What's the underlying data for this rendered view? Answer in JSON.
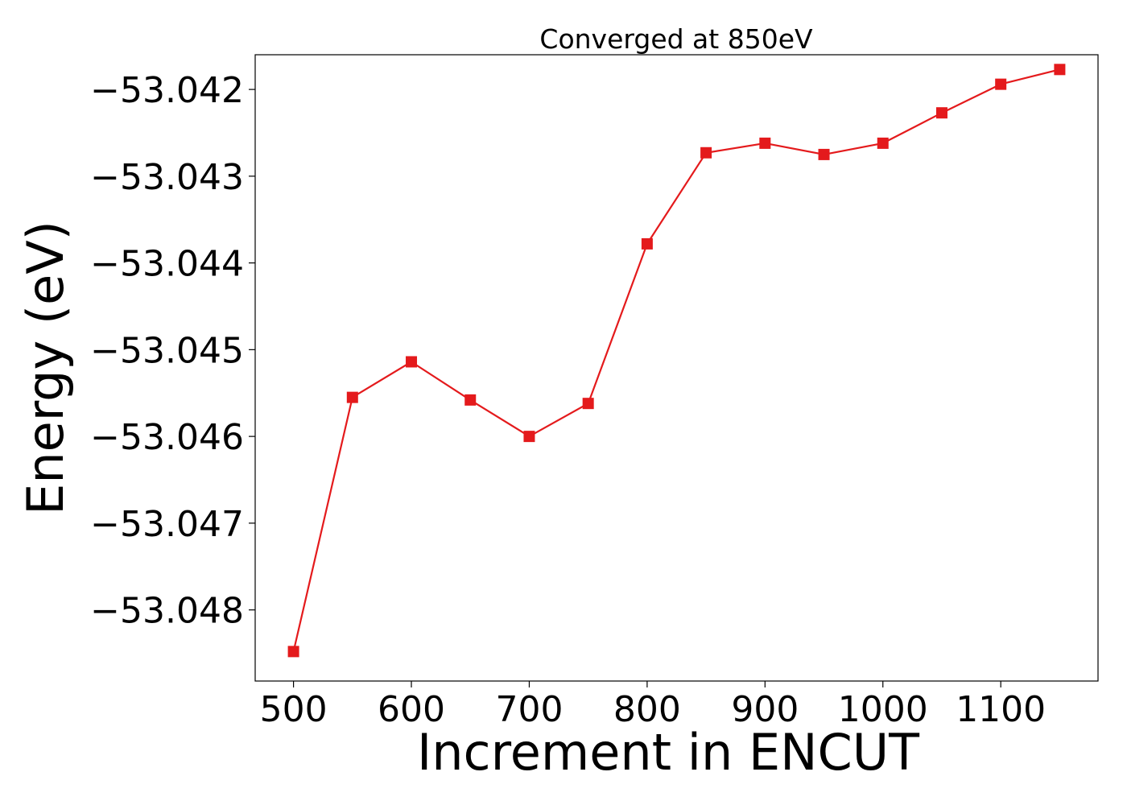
{
  "chart_data": {
    "type": "line",
    "title": "Converged at 850eV",
    "xlabel": "Increment in ENCUT",
    "ylabel": "Energy (eV)",
    "x": [
      500,
      550,
      600,
      650,
      700,
      750,
      800,
      850,
      900,
      950,
      1000,
      1050,
      1100,
      1150
    ],
    "series": [
      {
        "values": [
          -53.04848,
          -53.04555,
          -53.04514,
          -53.04558,
          -53.046,
          -53.04562,
          -53.04378,
          -53.04273,
          -53.04262,
          -53.04275,
          -53.04262,
          -53.04227,
          -53.04194,
          -53.04177
        ],
        "color": "#e41a1c",
        "marker": "square"
      }
    ],
    "xlim": [
      467.5,
      1182.5
    ],
    "ylim": [
      -53.04882,
      -53.0416
    ],
    "xticks": [
      500,
      600,
      700,
      800,
      900,
      1000,
      1100
    ],
    "xtick_labels": [
      "500",
      "600",
      "700",
      "800",
      "900",
      "1000",
      "1100"
    ],
    "yticks": [
      -53.048,
      -53.047,
      -53.046,
      -53.045,
      -53.044,
      -53.043,
      -53.042
    ],
    "ytick_labels": [
      "−53.048",
      "−53.047",
      "−53.046",
      "−53.045",
      "−53.044",
      "−53.043",
      "−53.042"
    ],
    "grid": false,
    "legend": "none"
  }
}
